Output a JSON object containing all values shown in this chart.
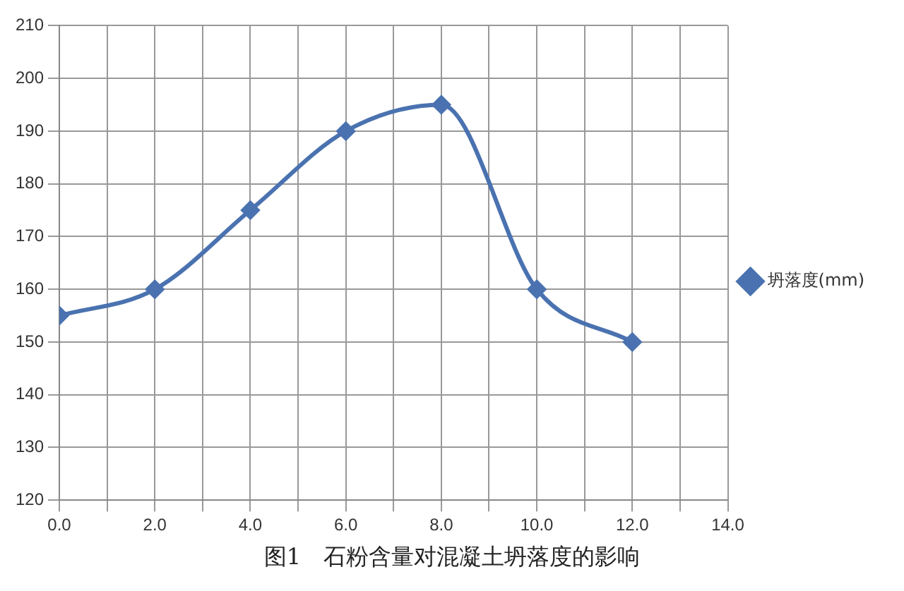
{
  "chart_data": {
    "type": "line",
    "x": [
      0,
      2,
      4,
      6,
      8,
      10,
      12
    ],
    "series": [
      {
        "name": "坍落度(mm)",
        "color": "#4a72b0",
        "values": [
          155,
          160,
          175,
          190,
          195,
          160,
          150
        ]
      }
    ],
    "xlim": [
      0,
      14
    ],
    "xticks": [
      {
        "value": 0,
        "label": "0.0"
      },
      {
        "value": 1,
        "label": null
      },
      {
        "value": 2,
        "label": "2.0"
      },
      {
        "value": 3,
        "label": null
      },
      {
        "value": 4,
        "label": "4.0"
      },
      {
        "value": 5,
        "label": null
      },
      {
        "value": 6,
        "label": "6.0"
      },
      {
        "value": 7,
        "label": null
      },
      {
        "value": 8,
        "label": "8.0"
      },
      {
        "value": 9,
        "label": null
      },
      {
        "value": 10,
        "label": "10.0"
      },
      {
        "value": 11,
        "label": null
      },
      {
        "value": 12,
        "label": "12.0"
      },
      {
        "value": 13,
        "label": null
      },
      {
        "value": 14,
        "label": "14.0"
      }
    ],
    "ylim": [
      120,
      210
    ],
    "yticks": [
      120,
      130,
      140,
      150,
      160,
      170,
      180,
      190,
      200,
      210
    ],
    "grid": true,
    "legend": "right",
    "marker": "diamond",
    "line_style": "solid",
    "annotations": [
      "图1　石粉含量对混凝土坍落度的影响"
    ]
  }
}
